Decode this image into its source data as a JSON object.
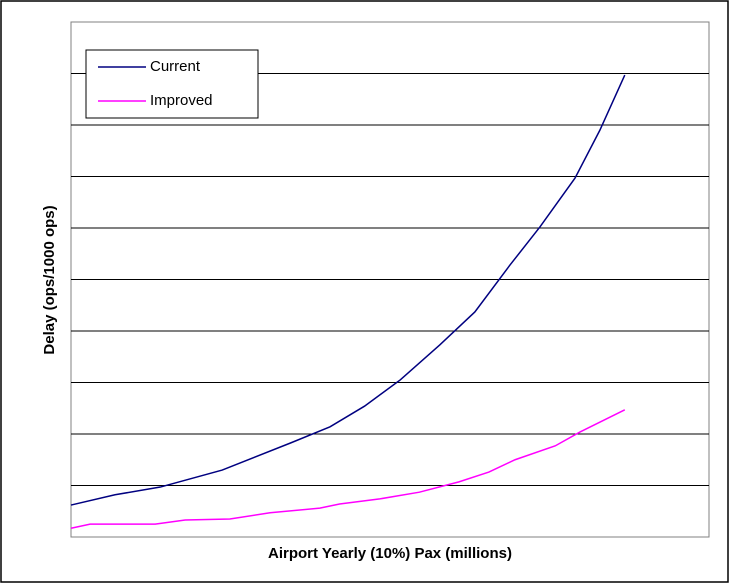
{
  "chart_data": {
    "type": "line",
    "xlabel": "Airport Yearly (10%) Pax (millions)",
    "ylabel": "Delay (ops/1000 ops)",
    "xlim": [
      0,
      100
    ],
    "ylim": [
      0,
      10
    ],
    "yticks": [
      1,
      2,
      3,
      4,
      5,
      6,
      7,
      8,
      9
    ],
    "grid": true,
    "legend": "upper left",
    "series": [
      {
        "name": "Current",
        "color": "#000080",
        "x": [
          0,
          6.9,
          14,
          23.7,
          34.5,
          40.6,
          46,
          51.6,
          57.8,
          63.3,
          68.8,
          73.5,
          79,
          82.9,
          86.8
        ],
        "values": [
          0.62,
          0.82,
          0.97,
          1.3,
          1.83,
          2.14,
          2.54,
          3.05,
          3.73,
          4.37,
          5.28,
          6.02,
          6.97,
          7.9,
          8.97
        ]
      },
      {
        "name": "Improved",
        "color": "#ff00ff",
        "x": [
          0,
          3,
          13.2,
          17.9,
          24.9,
          31.2,
          39,
          42.1,
          48.4,
          54.6,
          60.8,
          65.5,
          69.6,
          75.9,
          79.8,
          86.8
        ],
        "values": [
          0.17,
          0.25,
          0.25,
          0.33,
          0.35,
          0.47,
          0.56,
          0.64,
          0.74,
          0.87,
          1.07,
          1.26,
          1.5,
          1.77,
          2.04,
          2.47
        ]
      }
    ]
  }
}
